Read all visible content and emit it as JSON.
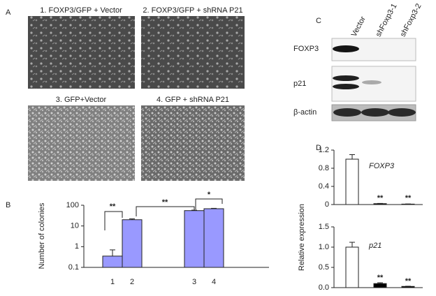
{
  "panel_labels": [
    "A",
    "B",
    "C",
    "D"
  ],
  "images": [
    "1. FOXP3/GFP + Vector",
    "2. FOXP3/GFP + shRNA P21",
    "3. GFP+Vector",
    "4. GFP + shRNA P21"
  ],
  "blot": {
    "lanes": [
      "Vector",
      "shFoxp3-1",
      "shFoxp3-2"
    ],
    "rows": [
      "FOXP3",
      "p21",
      "β-actin"
    ]
  },
  "chart_data": [
    {
      "type": "bar",
      "y_label": "Number of colonies",
      "categories": [
        "1",
        "2",
        "3",
        "4"
      ],
      "values": [
        0.35,
        20,
        55,
        68
      ],
      "errors": [
        0.35,
        2,
        3,
        3
      ],
      "color": "#9999ff",
      "ylim": [
        0.1,
        100
      ],
      "yticks": [
        0.1,
        1,
        10,
        100
      ],
      "log_scale": true,
      "annotations": [
        "**",
        "**",
        "*"
      ]
    },
    {
      "type": "bar",
      "title": "FOXP3",
      "y_label": "Relative expression",
      "categories": [
        null,
        null,
        null
      ],
      "values": [
        1.0,
        0.02,
        0.01
      ],
      "errors": [
        0.1,
        0.005,
        0.003
      ],
      "colors": [
        "#ffffff",
        "#000000",
        "#000000"
      ],
      "ylim": [
        0,
        1.2
      ],
      "yticks": [
        0,
        0.4,
        0.8,
        1.2
      ],
      "log_scale": false,
      "annotations": [
        "**",
        "**"
      ]
    },
    {
      "type": "bar",
      "title": "p21",
      "categories": [
        null,
        null,
        null
      ],
      "values": [
        1.0,
        0.1,
        0.03
      ],
      "errors": [
        0.12,
        0.02,
        0.005
      ],
      "colors": [
        "#ffffff",
        "#000000",
        "#000000"
      ],
      "ylim": [
        0,
        1.5
      ],
      "yticks": [
        {
          "value": 0,
          "label": "0.0"
        },
        {
          "value": 0.5,
          "label": "0.5"
        },
        {
          "value": 1.0,
          "label": "1.0"
        },
        {
          "value": 1.5,
          "label": "1.5"
        }
      ],
      "log_scale": false,
      "annotations": [
        "**",
        "**"
      ]
    }
  ]
}
